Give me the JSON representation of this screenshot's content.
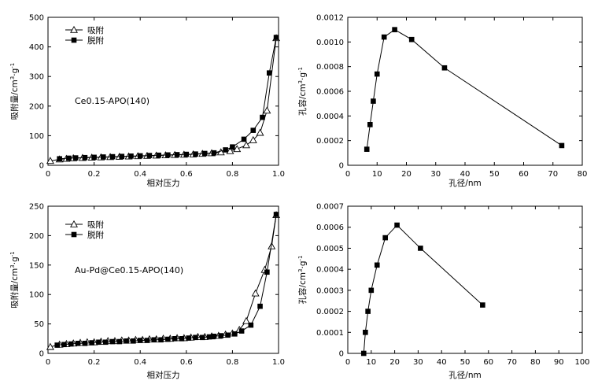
{
  "chart_data": [
    {
      "type": "line",
      "title": "",
      "xlabel": "相对压力",
      "ylabel_parts": [
        "吸附量/cm",
        "3",
        "·g",
        "-1"
      ],
      "xlim": [
        0,
        1.0
      ],
      "ylim": [
        0,
        500
      ],
      "xticks": [
        0,
        0.2,
        0.4,
        0.6,
        0.8,
        1.0
      ],
      "xtick_labels": [
        "0",
        "0.2",
        "0.4",
        "0.6",
        "0.8",
        "1.0"
      ],
      "yticks": [
        0,
        100,
        200,
        300,
        400,
        500
      ],
      "ytick_labels": [
        "0",
        "100",
        "200",
        "300",
        "400",
        "500"
      ],
      "annotation": "Ce0.15-APO(140)",
      "legend": [
        "吸附",
        "脱附"
      ],
      "series": [
        {
          "name": "吸附",
          "marker": "open-triangle",
          "x": [
            0.01,
            0.05,
            0.08,
            0.11,
            0.15,
            0.19,
            0.23,
            0.27,
            0.31,
            0.35,
            0.39,
            0.43,
            0.47,
            0.51,
            0.55,
            0.59,
            0.63,
            0.67,
            0.71,
            0.75,
            0.79,
            0.82,
            0.86,
            0.89,
            0.92,
            0.95,
            0.99
          ],
          "y": [
            15,
            20,
            22,
            24,
            25,
            26,
            27,
            28,
            29,
            30,
            31,
            32,
            33,
            34,
            35,
            36,
            37,
            39,
            41,
            44,
            48,
            55,
            68,
            85,
            110,
            185,
            430
          ]
        },
        {
          "name": "脱附",
          "marker": "filled-square",
          "x": [
            0.05,
            0.09,
            0.12,
            0.16,
            0.2,
            0.24,
            0.28,
            0.32,
            0.36,
            0.4,
            0.44,
            0.48,
            0.52,
            0.56,
            0.6,
            0.64,
            0.68,
            0.72,
            0.77,
            0.8,
            0.85,
            0.89,
            0.93,
            0.96,
            0.99
          ],
          "y": [
            22,
            24,
            25,
            26,
            27,
            28,
            29,
            30,
            31,
            32,
            33,
            34,
            35,
            36,
            37,
            38,
            40,
            42,
            52,
            62,
            88,
            118,
            162,
            312,
            432
          ]
        }
      ]
    },
    {
      "type": "line",
      "title": "",
      "xlabel": "孔径/nm",
      "ylabel_parts": [
        "孔容/cm",
        "3",
        "·g",
        "-1"
      ],
      "xlim": [
        0,
        80
      ],
      "ylim": [
        0,
        0.0012
      ],
      "xticks": [
        0,
        10,
        20,
        30,
        40,
        50,
        60,
        70,
        80
      ],
      "xtick_labels": [
        "0",
        "10",
        "20",
        "30",
        "40",
        "50",
        "60",
        "70",
        "80"
      ],
      "yticks": [
        0,
        0.0002,
        0.0004,
        0.0006,
        0.0008,
        0.001,
        0.0012
      ],
      "ytick_labels": [
        "0",
        "0.0002",
        "0.0004",
        "0.0006",
        "0.0008",
        "0.0010",
        "0.0012"
      ],
      "series": [
        {
          "name": "孔容",
          "marker": "filled-square",
          "x": [
            6.5,
            7.6,
            8.7,
            10.0,
            12.4,
            16.0,
            21.8,
            33.0,
            73.0
          ],
          "y": [
            0.00013,
            0.00033,
            0.00052,
            0.00074,
            0.00104,
            0.0011,
            0.00102,
            0.00079,
            0.00016
          ]
        }
      ]
    },
    {
      "type": "line",
      "title": "",
      "xlabel": "相对压力",
      "ylabel_parts": [
        "吸附量/cm",
        "3",
        "·g",
        "-1"
      ],
      "xlim": [
        0,
        1.0
      ],
      "ylim": [
        0,
        250
      ],
      "xticks": [
        0,
        0.2,
        0.4,
        0.6,
        0.8,
        1.0
      ],
      "xtick_labels": [
        "0",
        "0.2",
        "0.4",
        "0.6",
        "0.8",
        "1.0"
      ],
      "yticks": [
        0,
        50,
        100,
        150,
        200,
        250
      ],
      "ytick_labels": [
        "0",
        "50",
        "100",
        "150",
        "200",
        "250"
      ],
      "annotation": "Au-Pd@Ce0.15-APO(140)",
      "legend": [
        "吸附",
        "脱附"
      ],
      "series": [
        {
          "name": "吸附",
          "marker": "open-triangle",
          "x": [
            0.01,
            0.05,
            0.08,
            0.11,
            0.14,
            0.17,
            0.2,
            0.23,
            0.26,
            0.29,
            0.32,
            0.35,
            0.38,
            0.41,
            0.44,
            0.47,
            0.5,
            0.53,
            0.56,
            0.59,
            0.62,
            0.65,
            0.68,
            0.71,
            0.74,
            0.77,
            0.8,
            0.83,
            0.86,
            0.9,
            0.94,
            0.97,
            0.99
          ],
          "y": [
            11,
            15,
            16,
            17,
            18,
            19,
            19,
            20,
            21,
            21,
            22,
            22,
            23,
            23,
            24,
            24,
            25,
            25,
            26,
            26,
            27,
            28,
            28,
            29,
            30,
            32,
            34,
            40,
            55,
            102,
            142,
            182,
            235
          ]
        },
        {
          "name": "脱附",
          "marker": "filled-square",
          "x": [
            0.04,
            0.07,
            0.1,
            0.13,
            0.16,
            0.19,
            0.22,
            0.25,
            0.28,
            0.31,
            0.34,
            0.37,
            0.4,
            0.43,
            0.46,
            0.49,
            0.52,
            0.55,
            0.58,
            0.61,
            0.64,
            0.67,
            0.7,
            0.72,
            0.75,
            0.78,
            0.81,
            0.84,
            0.88,
            0.92,
            0.95,
            0.99
          ],
          "y": [
            14,
            15,
            16,
            17,
            17,
            18,
            19,
            19,
            20,
            20,
            21,
            21,
            22,
            22,
            23,
            23,
            24,
            25,
            25,
            26,
            27,
            27,
            28,
            29,
            30,
            31,
            33,
            38,
            48,
            80,
            138,
            236
          ]
        }
      ]
    },
    {
      "type": "line",
      "title": "",
      "xlabel": "孔径/nm",
      "ylabel_parts": [
        "孔容/cm",
        "3",
        "·g",
        "-1"
      ],
      "xlim": [
        0,
        100
      ],
      "ylim": [
        0,
        0.0007
      ],
      "xticks": [
        0,
        10,
        20,
        30,
        40,
        50,
        60,
        70,
        80,
        90,
        100
      ],
      "xtick_labels": [
        "0",
        "10",
        "20",
        "30",
        "40",
        "50",
        "60",
        "70",
        "80",
        "90",
        "100"
      ],
      "yticks": [
        0,
        0.0001,
        0.0002,
        0.0003,
        0.0004,
        0.0005,
        0.0006,
        0.0007
      ],
      "ytick_labels": [
        "0",
        "0.0001",
        "0.0002",
        "0.0003",
        "0.0004",
        "0.0005",
        "0.0006",
        "0.0007"
      ],
      "series": [
        {
          "name": "孔容",
          "marker": "filled-square",
          "x": [
            6.8,
            7.5,
            8.6,
            10.0,
            12.5,
            16.0,
            21.0,
            31.0,
            57.5
          ],
          "y": [
            0.0,
            0.0001,
            0.0002,
            0.0003,
            0.00042,
            0.00055,
            0.00061,
            0.0005,
            0.00023
          ]
        }
      ]
    }
  ]
}
